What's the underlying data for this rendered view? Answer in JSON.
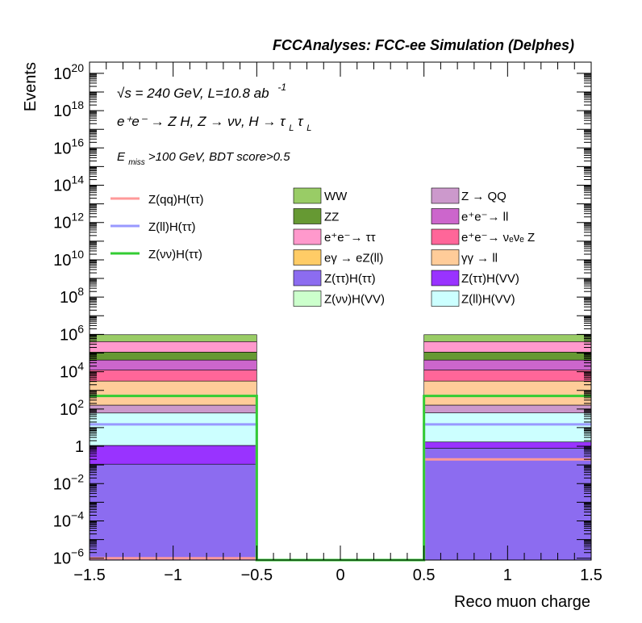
{
  "chart_data": {
    "type": "bar",
    "title": "FCCAnalyses: FCC-ee Simulation (Delphes)",
    "xlabel": "Reco muon charge",
    "ylabel": "Events",
    "xlim": [
      -1.5,
      1.5
    ],
    "ylim_log10": [
      -6.1,
      20.6
    ],
    "y_scale": "log",
    "grid": false,
    "x_ticks": [
      "−1.5",
      "−1",
      "−0.5",
      "0",
      "0.5",
      "1",
      "1.5"
    ],
    "x_tick_values": [
      -1.5,
      -1,
      -0.5,
      0,
      0.5,
      1,
      1.5
    ],
    "y_ticks": [
      {
        "base": "10",
        "exp": "−6",
        "log": -6
      },
      {
        "base": "10",
        "exp": "−4",
        "log": -4
      },
      {
        "base": "10",
        "exp": "−2",
        "log": -2
      },
      {
        "base": "1",
        "exp": "",
        "log": 0
      },
      {
        "base": "10",
        "exp": "2",
        "log": 2
      },
      {
        "base": "10",
        "exp": "4",
        "log": 4
      },
      {
        "base": "10",
        "exp": "6",
        "log": 6
      },
      {
        "base": "10",
        "exp": "8",
        "log": 8
      },
      {
        "base": "10",
        "exp": "10",
        "log": 10
      },
      {
        "base": "10",
        "exp": "12",
        "log": 12
      },
      {
        "base": "10",
        "exp": "14",
        "log": 14
      },
      {
        "base": "10",
        "exp": "16",
        "log": 16
      },
      {
        "base": "10",
        "exp": "18",
        "log": 18
      },
      {
        "base": "10",
        "exp": "20",
        "log": 20
      }
    ],
    "bins": [
      {
        "label": "−1",
        "x0": -1.5,
        "x1": -0.5
      },
      {
        "label": "0",
        "x0": -0.5,
        "x1": 0.5
      },
      {
        "label": "+1",
        "x0": 0.5,
        "x1": 1.5
      }
    ],
    "stack": [
      {
        "name": "Z(ττ)H(ττ)",
        "color": "#8c6cf0",
        "values": [
          0.11,
          0,
          0.8
        ]
      },
      {
        "name": "Z(ττ)H(VV)",
        "color": "#9933ff",
        "values": [
          1.0,
          0,
          0.9
        ]
      },
      {
        "name": "Z(ll)H(VV)",
        "color": "#ccffff",
        "values": [
          60,
          0,
          60
        ]
      },
      {
        "name": "Z → QQ",
        "color": "#cc99cc",
        "values": [
          100,
          0,
          100
        ]
      },
      {
        "name": "γγ → ll",
        "color": "#ffcc99",
        "values": [
          3000,
          0,
          3000
        ]
      },
      {
        "name": "e+e- → νeνe Z",
        "color": "#ff6699",
        "values": [
          9000,
          0,
          9000
        ]
      },
      {
        "name": "e+e- → ll",
        "color": "#cc66cc",
        "values": [
          30000,
          0,
          30000
        ]
      },
      {
        "name": "ZZ",
        "color": "#669933",
        "values": [
          70000,
          0,
          70000
        ]
      },
      {
        "name": "e+e-→ ττ",
        "color": "#ff99cc",
        "values": [
          300000,
          0,
          300000
        ]
      },
      {
        "name": "WW",
        "color": "#99cc66",
        "values": [
          550000,
          0,
          550000
        ]
      }
    ],
    "signals": [
      {
        "name": "Z(qq)H(ττ)",
        "color": "#ff9999",
        "values": [
          1e-06,
          0,
          0.2
        ]
      },
      {
        "name": "Z(ll)H(ττ)",
        "color": "#9999ff",
        "values": [
          15,
          0,
          15
        ]
      },
      {
        "name": "Z(νν)H(ττ)",
        "color": "#33cc33",
        "values": [
          500,
          0,
          500
        ]
      }
    ],
    "annotations": {
      "sqrt_s": "√s = 240 GeV, L=10.8 ab",
      "lumi_exp": "-1",
      "process": "e⁺e⁻ → Z H, Z → νν, H → τ",
      "sub_L1": "L",
      "tau2": "τ",
      "sub_L2": "L",
      "emiss": "E",
      "emiss_sub": "miss",
      "cut": ">100 GeV, BDT score>0.5"
    },
    "legend_placement": "top"
  },
  "legend": {
    "signals": [
      {
        "label": "Z(qq)H(ττ)",
        "color": "#ff9999"
      },
      {
        "label": "Z(ll)H(ττ)",
        "color": "#9999ff"
      },
      {
        "label": "Z(νν)H(ττ)",
        "color": "#33cc33"
      }
    ],
    "col1": [
      {
        "label": "WW",
        "color": "#99cc66"
      },
      {
        "label": "ZZ",
        "color": "#669933"
      },
      {
        "label": "e⁺e⁻→ ττ",
        "color": "#ff99cc"
      },
      {
        "label": "eγ → eZ(ll)",
        "color": "#ffcc66"
      },
      {
        "label": "Z(ττ)H(ττ)",
        "color": "#8c6cf0"
      },
      {
        "label": "Z(νν)H(VV)",
        "color": "#ccffcc"
      }
    ],
    "col2": [
      {
        "label": "Z → QQ",
        "color": "#cc99cc"
      },
      {
        "label": "e⁺e⁻→ ll",
        "color": "#cc66cc"
      },
      {
        "label": "e⁺e⁻→ νₑνₑ Z",
        "color": "#ff6699"
      },
      {
        "label": "γγ → ll",
        "color": "#ffcc99"
      },
      {
        "label": "Z(ττ)H(VV)",
        "color": "#9933ff"
      },
      {
        "label": "Z(ll)H(VV)",
        "color": "#ccffff"
      }
    ]
  }
}
